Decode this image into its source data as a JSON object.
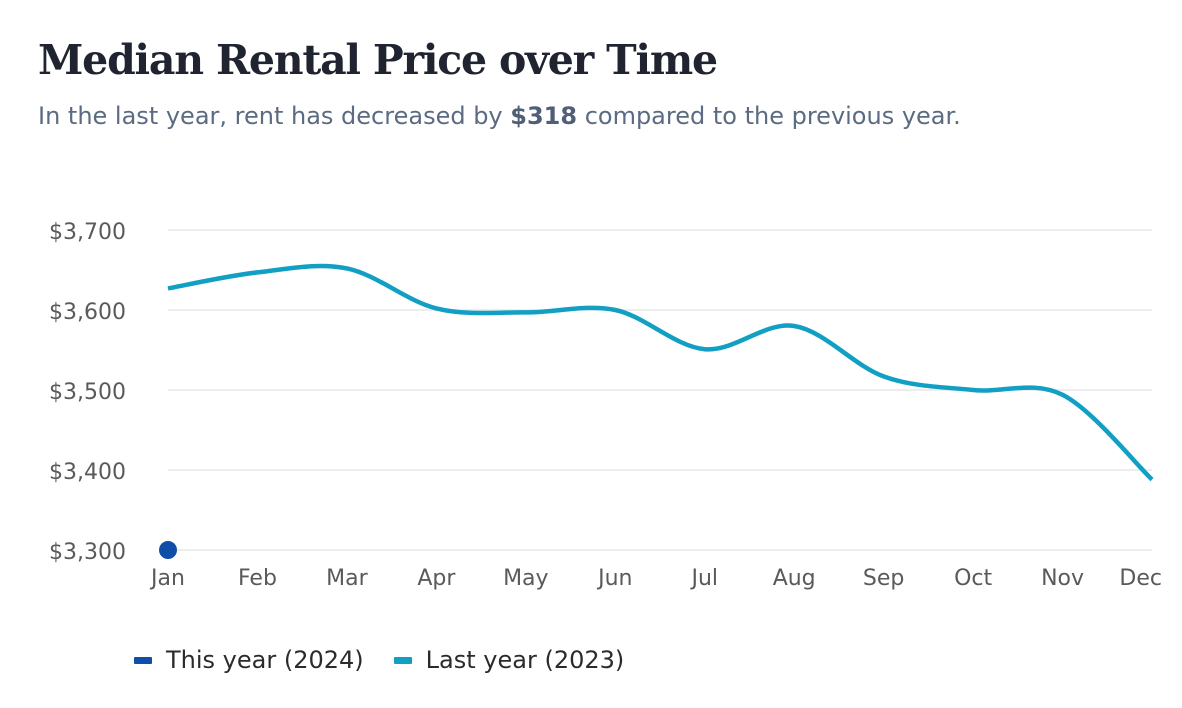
{
  "header": {
    "title": "Median Rental Price over Time",
    "subtitle_prefix": "In the last year, rent has decreased by ",
    "subtitle_highlight": "$318",
    "subtitle_suffix": " compared to the previous year."
  },
  "colors": {
    "this_year": "#0f4fa8",
    "last_year": "#129fc4",
    "grid": "#e7e7e7",
    "axis_text": "#5a5a5a"
  },
  "chart_data": {
    "type": "line",
    "title": "Median Rental Price over Time",
    "categories": [
      "Jan",
      "Feb",
      "Mar",
      "Apr",
      "May",
      "Jun",
      "Jul",
      "Aug",
      "Sep",
      "Oct",
      "Nov",
      "Dec"
    ],
    "y_ticks": [
      "$3,700",
      "$3,600",
      "$3,500",
      "$3,400",
      "$3,300"
    ],
    "y_tick_values": [
      3700,
      3600,
      3500,
      3400,
      3300
    ],
    "ylim": [
      3300,
      3700
    ],
    "grid": true,
    "legend_position": "bottom-left",
    "series": [
      {
        "name": "This year (2024)",
        "color": "#0f4fa8",
        "style": "point",
        "values": [
          3300,
          null,
          null,
          null,
          null,
          null,
          null,
          null,
          null,
          null,
          null,
          null
        ]
      },
      {
        "name": "Last year (2023)",
        "color": "#129fc4",
        "style": "smooth-line",
        "values": [
          3627,
          3647,
          3652,
          3602,
          3597,
          3600,
          3551,
          3580,
          3517,
          3500,
          3494,
          3388
        ]
      }
    ]
  }
}
